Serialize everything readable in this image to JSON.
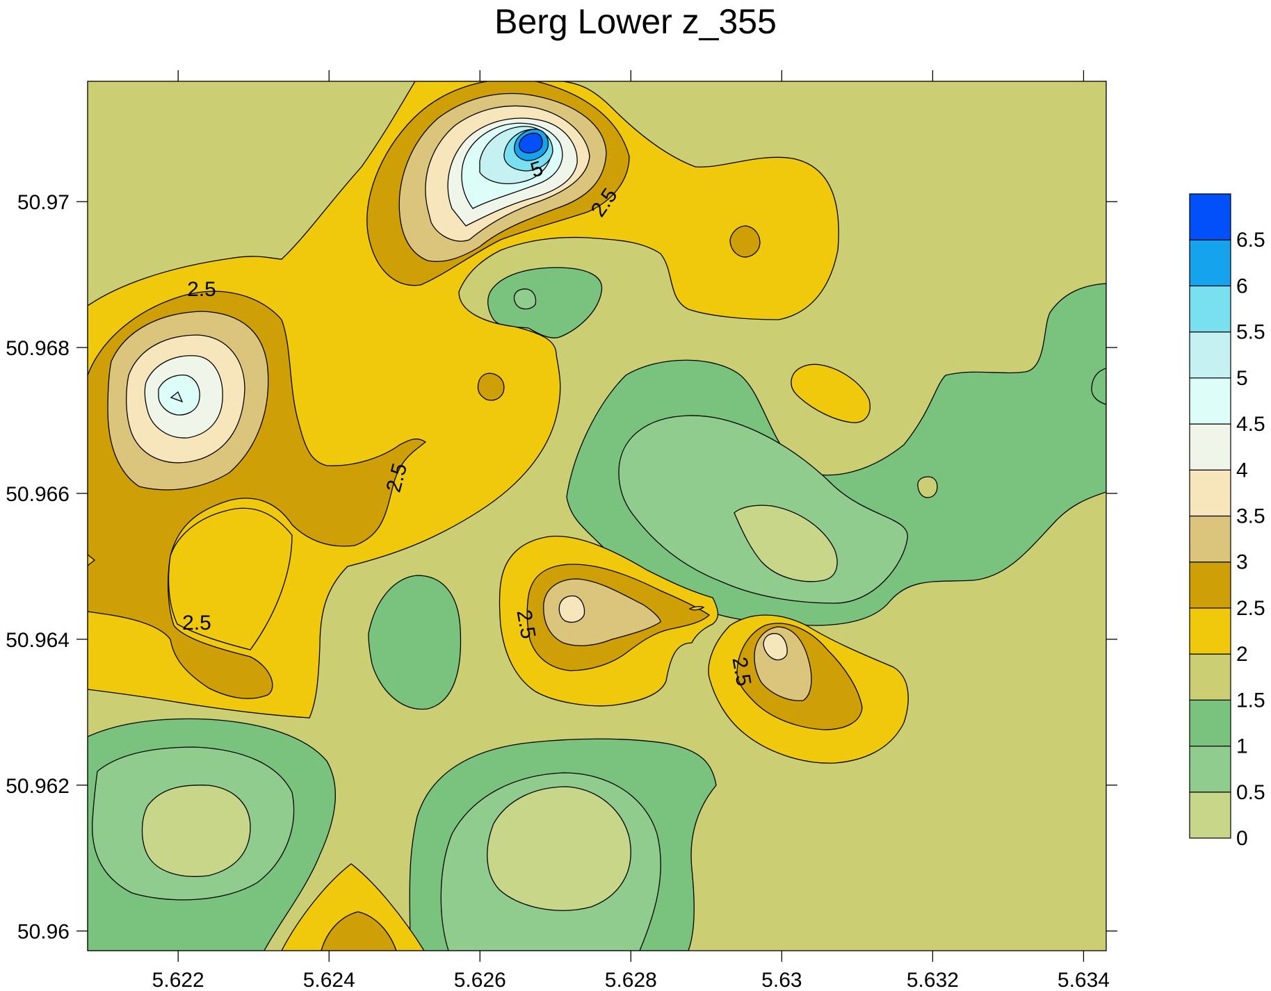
{
  "chart_data": {
    "type": "heatmap",
    "subtype": "filled-contour",
    "title": "Berg Lower z_355",
    "xlabel": "",
    "ylabel": "",
    "xlim": [
      5.6208,
      5.6343
    ],
    "ylim": [
      50.95973,
      50.97165
    ],
    "x_ticks": [
      "5.622",
      "5.624",
      "5.626",
      "5.628",
      "5.63",
      "5.632",
      "5.634"
    ],
    "x_tick_values": [
      5.622,
      5.624,
      5.626,
      5.628,
      5.63,
      5.632,
      5.634
    ],
    "y_ticks": [
      "50.96",
      "50.962",
      "50.964",
      "50.966",
      "50.968",
      "50.97"
    ],
    "y_tick_values": [
      50.96,
      50.962,
      50.964,
      50.966,
      50.968,
      50.97
    ],
    "background_level": "1.5-2",
    "colorbar": {
      "placement": "right",
      "levels": [
        0,
        0.5,
        1,
        1.5,
        2,
        2.5,
        3,
        3.5,
        4,
        4.5,
        5,
        5.5,
        6,
        6.5,
        7
      ],
      "labels": [
        "0",
        "0.5",
        "1",
        "1.5",
        "2",
        "2.5",
        "3",
        "3.5",
        "4",
        "4.5",
        "5",
        "5.5",
        "6",
        "6.5"
      ],
      "colors": [
        "#c8d68a",
        "#91cc8f",
        "#79c37e",
        "#cbce72",
        "#f0c80c",
        "#cf9f08",
        "#dbc47b",
        "#f7e6bc",
        "#f0f5ea",
        "#dcfdf8",
        "#c5f1f3",
        "#79e0ef",
        "#14a3ec",
        "#0250fa"
      ]
    },
    "contour_labels": [
      {
        "text": "5",
        "x": 5.6268,
        "y": 50.9705,
        "angle": -18
      },
      {
        "text": "2.5",
        "x": 5.62782,
        "y": 50.96998,
        "angle": -55
      },
      {
        "text": "2.5",
        "x": 5.62245,
        "y": 50.96846,
        "angle": 0
      },
      {
        "text": "2.5",
        "x": 5.62487,
        "y": 50.96617,
        "angle": -75
      },
      {
        "text": "2.5",
        "x": 5.62236,
        "y": 50.96416,
        "angle": 0
      },
      {
        "text": "2.5",
        "x": 5.62664,
        "y": 50.96405,
        "angle": 80
      },
      {
        "text": "2.5",
        "x": 5.62949,
        "y": 50.96349,
        "angle": 80
      }
    ],
    "extrema": [
      {
        "kind": "max",
        "x": 5.62675,
        "y": 50.97078,
        "value_band": "6.5-7"
      },
      {
        "kind": "max",
        "x": 5.62213,
        "y": 50.96735,
        "value_band": "5-5.5"
      },
      {
        "kind": "max",
        "x": 5.62727,
        "y": 50.96426,
        "value_band": "4-4.5"
      },
      {
        "kind": "max",
        "x": 5.62989,
        "y": 50.96387,
        "value_band": "4-4.5"
      },
      {
        "kind": "min",
        "x": 5.62226,
        "y": 50.9614,
        "value_band": "0-0.5"
      },
      {
        "kind": "min",
        "x": 5.62753,
        "y": 50.9609,
        "value_band": "0-0.5"
      },
      {
        "kind": "min",
        "x": 5.62988,
        "y": 50.96535,
        "value_band": "0-0.5"
      }
    ]
  }
}
